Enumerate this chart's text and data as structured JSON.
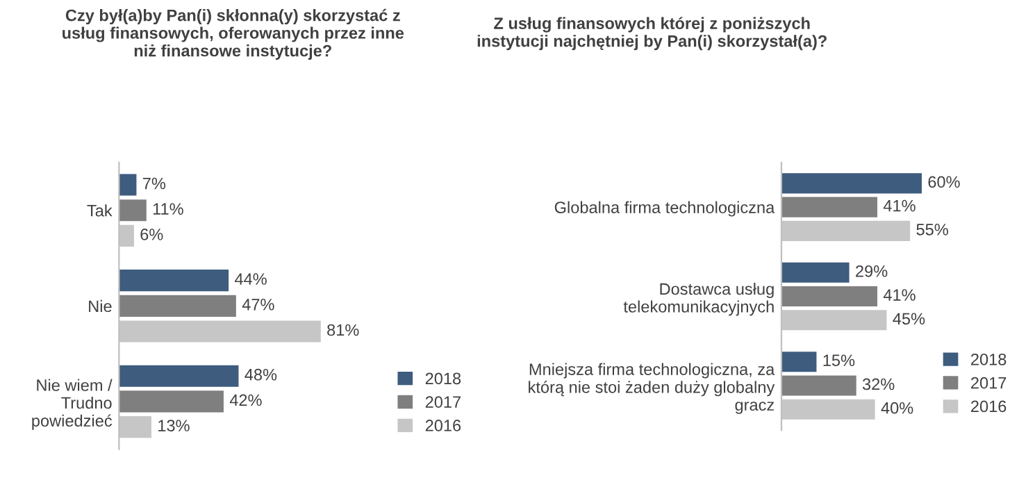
{
  "chart_data": [
    {
      "type": "bar",
      "orientation": "horizontal",
      "title": "Czy był(a)by Pan(i) skłonna(y) skorzystać z\nusług finansowych, oferowanych przez inne\nniż finansowe instytucje?",
      "categories": [
        "Tak",
        "Nie",
        "Nie wiem /\nTrudno\npowiedzieć"
      ],
      "series": [
        {
          "name": "2018",
          "color": "#3e5c7e",
          "values": [
            7,
            44,
            48
          ],
          "value_labels": [
            "7%",
            "44%",
            "48%"
          ]
        },
        {
          "name": "2017",
          "color": "#7f7f7f",
          "values": [
            11,
            47,
            42
          ],
          "value_labels": [
            "11%",
            "47%",
            "42%"
          ]
        },
        {
          "name": "2016",
          "color": "#c6c6c6",
          "values": [
            6,
            81,
            13
          ],
          "value_labels": [
            "6%",
            "81%",
            "13%"
          ]
        }
      ],
      "legend": "bottom right",
      "grid": false
    },
    {
      "type": "bar",
      "orientation": "horizontal",
      "title": "Z usług finansowych której z poniższych\ninstytucji najchętniej by Pan(i) skorzystał(a)?",
      "categories": [
        "Globalna firma technologiczna",
        "Dostawca usług\ntelekomunikacyjnych",
        "Mniejsza firma technologiczna, za\nktórą nie stoi żaden duży globalny\ngracz"
      ],
      "series": [
        {
          "name": "2018",
          "color": "#3e5c7e",
          "values": [
            60,
            29,
            15
          ],
          "value_labels": [
            "60%",
            "29%",
            "15%"
          ]
        },
        {
          "name": "2017",
          "color": "#7f7f7f",
          "values": [
            41,
            41,
            32
          ],
          "value_labels": [
            "41%",
            "41%",
            "32%"
          ]
        },
        {
          "name": "2016",
          "color": "#c6c6c6",
          "values": [
            55,
            45,
            40
          ],
          "value_labels": [
            "55%",
            "45%",
            "40%"
          ]
        }
      ],
      "legend": "bottom right",
      "grid": false
    }
  ]
}
